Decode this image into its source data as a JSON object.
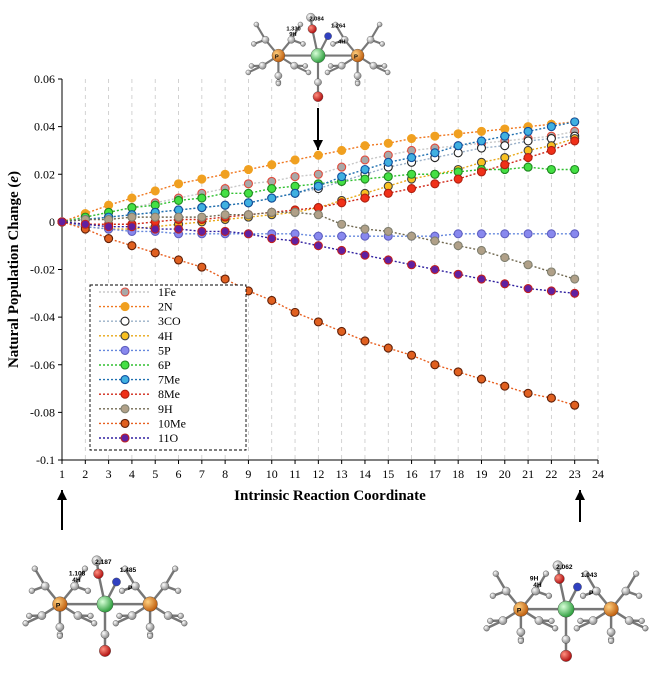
{
  "chart_data": {
    "type": "line",
    "xlabel": "Intrinsic Reaction Coordinate",
    "ylabel": "Natural Population Change (e)",
    "ylabel_parts": {
      "main": "Natural Population Change (",
      "italic": "e",
      "end": ")"
    },
    "xlim": [
      1,
      24
    ],
    "ylim": [
      -0.1,
      0.06
    ],
    "xticks": [
      "1",
      "2",
      "3",
      "4",
      "5",
      "6",
      "7",
      "8",
      "9",
      "10",
      "11",
      "12",
      "13",
      "14",
      "15",
      "16",
      "17",
      "18",
      "19",
      "20",
      "21",
      "22",
      "23",
      "24"
    ],
    "yticks": [
      "-0.1",
      "-0.08",
      "-0.06",
      "-0.04",
      "-0.02",
      "0",
      "0.02",
      "0.04",
      "0.06"
    ],
    "grid": "vertical dashed",
    "legend_position": "lower-left",
    "x": [
      1,
      2,
      3,
      4,
      5,
      6,
      7,
      8,
      9,
      10,
      11,
      12,
      13,
      14,
      15,
      16,
      17,
      18,
      19,
      20,
      21,
      22,
      23
    ],
    "series": [
      {
        "name": "1Fe",
        "marker_fill": "#a8a8a8",
        "marker_edge": "#e24a3b",
        "line": "#c8c8c8",
        "values": [
          0,
          0.002,
          0.004,
          0.006,
          0.008,
          0.01,
          0.012,
          0.014,
          0.016,
          0.017,
          0.019,
          0.02,
          0.023,
          0.026,
          0.028,
          0.03,
          0.031,
          0.032,
          0.033,
          0.034,
          0.035,
          0.036,
          0.038
        ]
      },
      {
        "name": "2N",
        "marker_fill": "#f0a020",
        "marker_edge": "#f0a020",
        "line": "#f07820",
        "values": [
          0,
          0.0035,
          0.007,
          0.01,
          0.013,
          0.016,
          0.018,
          0.02,
          0.022,
          0.024,
          0.026,
          0.028,
          0.03,
          0.032,
          0.033,
          0.035,
          0.036,
          0.037,
          0.038,
          0.039,
          0.04,
          0.041,
          0.042
        ]
      },
      {
        "name": "3CO",
        "marker_fill": "#ffffff",
        "marker_edge": "#222222",
        "line": "#9ab0c8",
        "values": [
          0,
          0.001,
          0.002,
          0.003,
          0.004,
          0.005,
          0.006,
          0.007,
          0.008,
          0.01,
          0.012,
          0.014,
          0.017,
          0.02,
          0.023,
          0.025,
          0.027,
          0.029,
          0.031,
          0.032,
          0.034,
          0.035,
          0.036
        ]
      },
      {
        "name": "4H",
        "marker_fill": "#f8c020",
        "marker_edge": "#404040",
        "line": "#e8a818",
        "values": [
          0,
          -0.002,
          -0.003,
          -0.003,
          -0.002,
          -0.001,
          0.0,
          0.001,
          0.002,
          0.003,
          0.004,
          0.006,
          0.009,
          0.012,
          0.015,
          0.018,
          0.02,
          0.022,
          0.025,
          0.027,
          0.03,
          0.032,
          0.035
        ]
      },
      {
        "name": "5P",
        "marker_fill": "#8888ee",
        "marker_edge": "#6060c0",
        "line": "#6688dd",
        "values": [
          0,
          -0.002,
          -0.003,
          -0.004,
          -0.004,
          -0.005,
          -0.005,
          -0.005,
          -0.005,
          -0.005,
          -0.005,
          -0.006,
          -0.006,
          -0.006,
          -0.006,
          -0.006,
          -0.006,
          -0.005,
          -0.005,
          -0.005,
          -0.005,
          -0.005,
          -0.005
        ]
      },
      {
        "name": "6P",
        "marker_fill": "#44e044",
        "marker_edge": "#208820",
        "line": "#30c030",
        "values": [
          0,
          0.002,
          0.004,
          0.006,
          0.007,
          0.009,
          0.01,
          0.012,
          0.012,
          0.014,
          0.015,
          0.016,
          0.017,
          0.018,
          0.019,
          0.02,
          0.02,
          0.021,
          0.022,
          0.022,
          0.023,
          0.022,
          0.022
        ]
      },
      {
        "name": "7Me",
        "marker_fill": "#40b0e0",
        "marker_edge": "#1050a0",
        "line": "#2070b0",
        "values": [
          0,
          0.001,
          0.002,
          0.003,
          0.004,
          0.005,
          0.006,
          0.007,
          0.008,
          0.01,
          0.012,
          0.015,
          0.019,
          0.022,
          0.025,
          0.027,
          0.029,
          0.032,
          0.034,
          0.036,
          0.038,
          0.04,
          0.042
        ]
      },
      {
        "name": "8Me",
        "marker_fill": "#f03018",
        "marker_edge": "#b02010",
        "line": "#d02818",
        "values": [
          0,
          -0.001,
          -0.001,
          -0.001,
          0.0,
          0.001,
          0.001,
          0.002,
          0.003,
          0.004,
          0.005,
          0.006,
          0.008,
          0.01,
          0.012,
          0.014,
          0.016,
          0.018,
          0.021,
          0.024,
          0.027,
          0.03,
          0.034
        ]
      },
      {
        "name": "9H",
        "marker_fill": "#b0a088",
        "marker_edge": "#808070",
        "line": "#706850",
        "values": [
          0,
          0.001,
          0.001,
          0.002,
          0.002,
          0.002,
          0.002,
          0.003,
          0.003,
          0.004,
          0.004,
          0.003,
          -0.001,
          -0.003,
          -0.004,
          -0.006,
          -0.008,
          -0.01,
          -0.012,
          -0.015,
          -0.018,
          -0.021,
          -0.024
        ]
      },
      {
        "name": "10Me",
        "marker_fill": "#e06020",
        "marker_edge": "#602008",
        "line": "#e86020",
        "values": [
          0,
          -0.003,
          -0.007,
          -0.01,
          -0.013,
          -0.016,
          -0.019,
          -0.024,
          -0.029,
          -0.033,
          -0.038,
          -0.042,
          -0.046,
          -0.05,
          -0.053,
          -0.056,
          -0.06,
          -0.063,
          -0.066,
          -0.069,
          -0.072,
          -0.074,
          -0.077
        ]
      },
      {
        "name": "11O",
        "marker_fill": "#6020a0",
        "marker_edge": "#c02020",
        "line": "#3020a0",
        "values": [
          0,
          -0.001,
          -0.002,
          -0.002,
          -0.003,
          -0.003,
          -0.004,
          -0.004,
          -0.005,
          -0.007,
          -0.008,
          -0.01,
          -0.012,
          -0.014,
          -0.016,
          -0.018,
          -0.02,
          -0.022,
          -0.024,
          -0.026,
          -0.028,
          -0.029,
          -0.03
        ]
      }
    ]
  },
  "molecules": {
    "top": {
      "labels": [
        "1.330",
        "2.084",
        "1.264",
        "9H",
        "4H",
        "P",
        "P"
      ]
    },
    "bottom_left": {
      "labels": [
        "1.108",
        "2.187",
        "1.485",
        "4H",
        "P",
        "P"
      ]
    },
    "bottom_right": {
      "labels": [
        "9H",
        "2.062",
        "1.043",
        "4H",
        "P",
        "P"
      ]
    }
  }
}
